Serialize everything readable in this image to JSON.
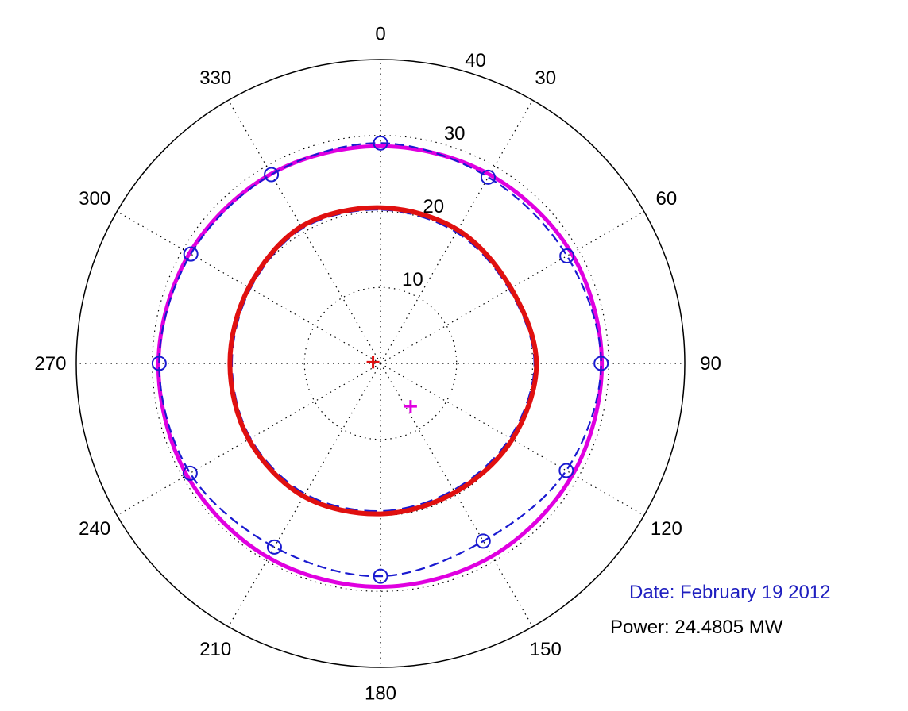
{
  "chart_data": {
    "type": "line",
    "polar": true,
    "theta_direction": "clockwise",
    "theta_zero": "top",
    "angle_ticks": [
      "0",
      "30",
      "60",
      "90",
      "120",
      "150",
      "180",
      "210",
      "240",
      "270",
      "300",
      "330"
    ],
    "radial_ticks": [
      "10",
      "20",
      "30",
      "40"
    ],
    "rlim": [
      0,
      40
    ],
    "grid": true,
    "series": [
      {
        "color": "#e000e0",
        "style": "solid",
        "points": [
          {
            "theta": 0,
            "r": 28.6
          },
          {
            "theta": 30,
            "r": 28.7
          },
          {
            "theta": 60,
            "r": 29.0
          },
          {
            "theta": 90,
            "r": 29.1
          },
          {
            "theta": 120,
            "r": 29.2
          },
          {
            "theta": 150,
            "r": 29.3
          },
          {
            "theta": 180,
            "r": 29.4
          },
          {
            "theta": 210,
            "r": 29.5
          },
          {
            "theta": 240,
            "r": 29.4
          },
          {
            "theta": 270,
            "r": 29.2
          },
          {
            "theta": 300,
            "r": 29.0
          },
          {
            "theta": 330,
            "r": 28.8
          }
        ]
      },
      {
        "color": "#1a1ad0",
        "style": "dashed",
        "markers": "circle",
        "points": [
          {
            "theta": 0,
            "r": 29.0
          },
          {
            "theta": 30,
            "r": 28.3
          },
          {
            "theta": 60,
            "r": 28.3
          },
          {
            "theta": 90,
            "r": 29.0
          },
          {
            "theta": 120,
            "r": 28.2
          },
          {
            "theta": 150,
            "r": 27.0
          },
          {
            "theta": 180,
            "r": 28.0
          },
          {
            "theta": 210,
            "r": 27.9
          },
          {
            "theta": 240,
            "r": 28.9
          },
          {
            "theta": 270,
            "r": 29.1
          },
          {
            "theta": 300,
            "r": 28.8
          },
          {
            "theta": 330,
            "r": 28.7
          }
        ]
      },
      {
        "color": "#e01010",
        "style": "solid",
        "points": [
          {
            "theta": 0,
            "r": 20.5
          },
          {
            "theta": 30,
            "r": 20.3
          },
          {
            "theta": 60,
            "r": 19.8
          },
          {
            "theta": 90,
            "r": 20.5
          },
          {
            "theta": 120,
            "r": 20.0
          },
          {
            "theta": 150,
            "r": 19.6
          },
          {
            "theta": 180,
            "r": 19.8
          },
          {
            "theta": 210,
            "r": 20.2
          },
          {
            "theta": 240,
            "r": 20.0
          },
          {
            "theta": 270,
            "r": 19.8
          },
          {
            "theta": 300,
            "r": 20.0
          },
          {
            "theta": 330,
            "r": 20.8
          }
        ]
      },
      {
        "color": "#1a1ad0",
        "style": "dashed",
        "points": [
          {
            "theta": 0,
            "r": 20.3
          },
          {
            "theta": 30,
            "r": 20.0
          },
          {
            "theta": 60,
            "r": 19.6
          },
          {
            "theta": 90,
            "r": 20.3
          },
          {
            "theta": 120,
            "r": 19.7
          },
          {
            "theta": 150,
            "r": 19.3
          },
          {
            "theta": 180,
            "r": 19.5
          },
          {
            "theta": 210,
            "r": 19.9
          },
          {
            "theta": 240,
            "r": 19.8
          },
          {
            "theta": 270,
            "r": 19.6
          },
          {
            "theta": 300,
            "r": 19.8
          },
          {
            "theta": 330,
            "r": 20.6
          }
        ]
      }
    ],
    "centers": [
      {
        "color": "#e01010",
        "theta": 280,
        "r": 1.0
      },
      {
        "color": "#e000e0",
        "theta": 145,
        "r": 6.9
      }
    ]
  },
  "annotations": {
    "date_label": "Date: February 19 2012",
    "date_color": "#2020c0",
    "power_label": "Power: 24.4805 MW"
  }
}
